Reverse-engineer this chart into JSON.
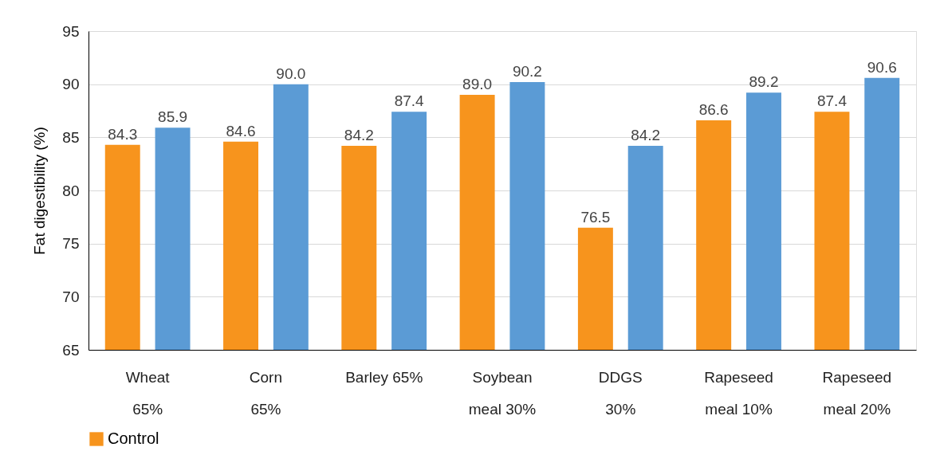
{
  "chart_data": {
    "type": "bar",
    "ylabel": "Fat digestibility (%)",
    "categories": [
      "Wheat\n65%",
      "Corn\n65%",
      "Barley 65%",
      "Soybean\nmeal 30%",
      "DDGS\n30%",
      "Rapeseed\nmeal 10%",
      "Rapeseed\nmeal 20%"
    ],
    "series": [
      {
        "name": "Control",
        "color": "#f7941d",
        "values": [
          84.3,
          84.6,
          84.2,
          89.0,
          76.5,
          86.6,
          87.4
        ],
        "value_labels": [
          "84.3",
          "84.6",
          "84.2",
          "89.0",
          "76.5",
          "86.6",
          "87.4"
        ]
      },
      {
        "color": "#5b9bd5",
        "values": [
          85.9,
          90.0,
          87.4,
          90.2,
          84.2,
          89.2,
          90.6
        ],
        "value_labels": [
          "85.9",
          "90.0",
          "87.4",
          "90.2",
          "84.2",
          "89.2",
          "90.6"
        ]
      }
    ],
    "ylim": [
      65,
      95
    ],
    "yticks": [
      65,
      70,
      75,
      80,
      85,
      90,
      95
    ],
    "grid": "y",
    "legend": "bottom"
  }
}
